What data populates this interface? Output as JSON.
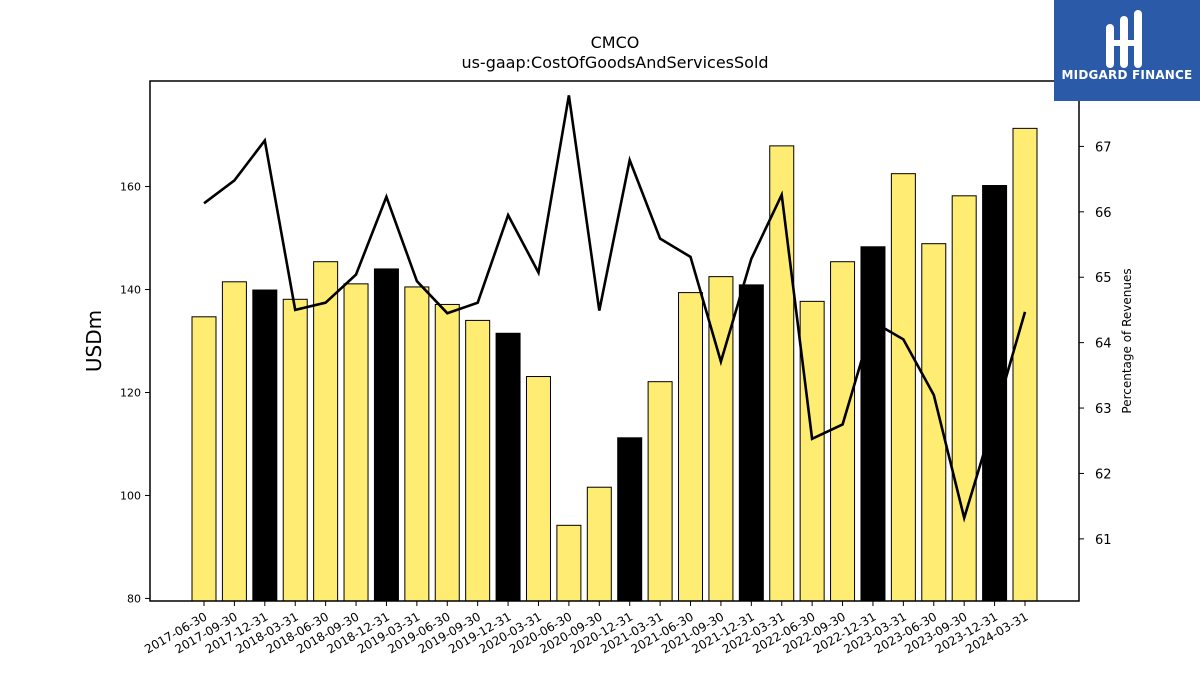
{
  "chart_data": {
    "type": "bar",
    "title": "CMCO",
    "subtitle": "us-gaap:CostOfGoodsAndServicesSold",
    "ylabel": "USDm",
    "y2label": "Percentage of Revenues",
    "ylim": [
      79.5,
      180.5
    ],
    "y2lim": [
      60.05,
      68.0
    ],
    "yticks": [
      80,
      100,
      120,
      140,
      160
    ],
    "y2ticks": [
      61,
      62,
      63,
      64,
      65,
      66,
      67
    ],
    "categories": [
      "2017-06-30",
      "2017-09-30",
      "2017-12-31",
      "2018-03-31",
      "2018-06-30",
      "2018-09-30",
      "2018-12-31",
      "2019-03-31",
      "2019-06-30",
      "2019-09-30",
      "2019-12-31",
      "2020-03-31",
      "2020-06-30",
      "2020-09-30",
      "2020-12-31",
      "2021-03-31",
      "2021-06-30",
      "2021-09-30",
      "2021-12-31",
      "2022-03-31",
      "2022-06-30",
      "2022-09-30",
      "2022-12-31",
      "2023-03-31",
      "2023-06-30",
      "2023-09-30",
      "2023-12-31",
      "2024-03-31"
    ],
    "series": [
      {
        "values": [
          134.7,
          141.5,
          139.9,
          138.1,
          145.4,
          141.1,
          144.0,
          140.5,
          137.1,
          134.0,
          131.5,
          123.1,
          94.2,
          101.6,
          111.2,
          122.1,
          139.4,
          142.5,
          140.9,
          167.9,
          137.7,
          145.4,
          148.3,
          162.5,
          148.9,
          158.2,
          160.2,
          171.3
        ],
        "highlight": [
          false,
          false,
          true,
          false,
          false,
          false,
          true,
          false,
          false,
          false,
          true,
          false,
          false,
          false,
          true,
          false,
          false,
          false,
          true,
          false,
          false,
          false,
          true,
          false,
          false,
          false,
          true,
          false
        ],
        "color": "#ffec73",
        "highlight_color": "#000000"
      },
      {
        "axis": "right",
        "type": "line",
        "color": "#000000",
        "values": [
          66.13,
          66.48,
          67.09,
          64.5,
          64.61,
          65.04,
          66.23,
          64.94,
          64.45,
          64.61,
          65.95,
          65.07,
          67.78,
          64.49,
          66.79,
          65.59,
          65.31,
          63.71,
          65.28,
          66.26,
          62.53,
          62.75,
          64.32,
          64.05,
          63.2,
          61.32,
          62.86,
          64.47
        ]
      }
    ]
  },
  "logo": {
    "text": "MIDGARD FINANCE"
  }
}
